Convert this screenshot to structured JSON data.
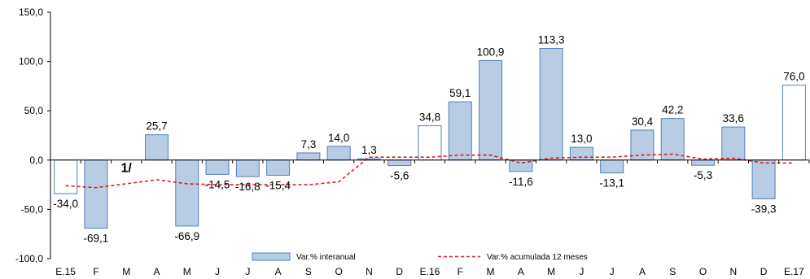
{
  "chart_data": {
    "type": "bar",
    "categories": [
      "E.15",
      "F",
      "M",
      "A",
      "M",
      "J",
      "J",
      "A",
      "S",
      "O",
      "N",
      "D",
      "E.16",
      "F",
      "M",
      "A",
      "M",
      "J",
      "J",
      "A",
      "S",
      "O",
      "N",
      "D",
      "E.17"
    ],
    "series": [
      {
        "name": "Var.% interanual",
        "type": "bar",
        "values": [
          -34.0,
          -69.1,
          null,
          25.7,
          -66.9,
          -14.5,
          -16.8,
          -15.4,
          7.3,
          14.0,
          1.3,
          -5.6,
          34.8,
          59.1,
          100.9,
          -11.6,
          113.3,
          13.0,
          -13.1,
          30.4,
          42.2,
          -5.3,
          33.6,
          -39.3,
          76.0
        ],
        "labels": [
          "-34,0",
          "-69,1",
          "",
          "25,7",
          "-66,9",
          "-14,5",
          "-16,8",
          "-15,4",
          "7,3",
          "14,0",
          "1,3",
          "-5,6",
          "34,8",
          "59,1",
          "100,9",
          "-11,6",
          "113,3",
          "13,0",
          "-13,1",
          "30,4",
          "42,2",
          "-5,3",
          "33,6",
          "-39,3",
          "76,0"
        ],
        "fill_color": "#b8cce4",
        "stroke_color": "#4f81bd",
        "hollow_indices": [
          0,
          12,
          24
        ]
      },
      {
        "name": "Var.% acumulada 12 meses",
        "type": "line",
        "style": "dashed",
        "color": "#e31a1c",
        "values": [
          -26,
          -28,
          -24,
          -20,
          -24,
          -25,
          -25,
          -25,
          -25,
          -22,
          3,
          3,
          3,
          5,
          5,
          -3,
          2,
          3,
          3,
          5,
          6,
          1,
          2,
          -3,
          -3
        ]
      }
    ],
    "y_ticks": [
      "150,0",
      "100,0",
      "50,0",
      "0,0",
      "-50,0",
      "-100,0"
    ],
    "ylim": [
      -100,
      150
    ],
    "y_step": 50,
    "annotation": {
      "text": "1/",
      "category_index": 2,
      "y": -12
    },
    "legend": {
      "position": "bottom-center"
    }
  }
}
